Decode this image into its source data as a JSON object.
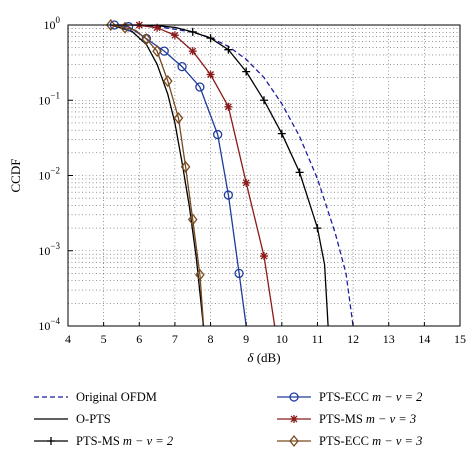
{
  "chart_data": {
    "type": "line",
    "xlabel": "δ (dB)",
    "ylabel": "CCDF",
    "xlim": [
      4,
      15
    ],
    "ylim": [
      0.0001,
      1
    ],
    "yscale": "log",
    "grid": true,
    "x_ticks": [
      "4",
      "5",
      "6",
      "7",
      "8",
      "9",
      "10",
      "11",
      "12",
      "13",
      "14",
      "15"
    ],
    "y_ticks": [
      {
        "base": "10",
        "exp": "0"
      },
      {
        "base": "10",
        "exp": "−1"
      },
      {
        "base": "10",
        "exp": "−2"
      },
      {
        "base": "10",
        "exp": "−3"
      },
      {
        "base": "10",
        "exp": "−4"
      }
    ],
    "legend_position": "bottom",
    "series": [
      {
        "name": "Original OFDM",
        "color": "#1f1f9e",
        "dash": true,
        "marker": "none",
        "points": [
          [
            5.8,
            1.0
          ],
          [
            6.5,
            0.95
          ],
          [
            7.0,
            0.88
          ],
          [
            7.5,
            0.8
          ],
          [
            8.0,
            0.68
          ],
          [
            8.5,
            0.52
          ],
          [
            9.0,
            0.35
          ],
          [
            9.5,
            0.2
          ],
          [
            10.0,
            0.09
          ],
          [
            10.5,
            0.033
          ],
          [
            11.0,
            0.009
          ],
          [
            11.5,
            0.0017
          ],
          [
            11.8,
            0.0005
          ],
          [
            12.0,
            0.0001
          ]
        ]
      },
      {
        "name": "O-PTS",
        "color": "#000000",
        "dash": false,
        "marker": "none",
        "points": [
          [
            5.2,
            1.0
          ],
          [
            5.8,
            0.82
          ],
          [
            6.2,
            0.55
          ],
          [
            6.5,
            0.3
          ],
          [
            6.8,
            0.12
          ],
          [
            7.0,
            0.05
          ],
          [
            7.2,
            0.015
          ],
          [
            7.4,
            0.004
          ],
          [
            7.6,
            0.0008
          ],
          [
            7.8,
            0.0001
          ]
        ]
      },
      {
        "name": "PTS-MS m − v = 2",
        "color": "#000000",
        "dash": false,
        "marker": "plus",
        "points": [
          [
            5.2,
            1.0
          ],
          [
            6.0,
            1.0
          ],
          [
            6.5,
            0.98
          ],
          [
            7.0,
            0.93
          ],
          [
            7.5,
            0.81
          ],
          [
            8.0,
            0.67
          ],
          [
            8.5,
            0.47
          ],
          [
            9.0,
            0.24
          ],
          [
            9.5,
            0.1
          ],
          [
            10.0,
            0.036
          ],
          [
            10.5,
            0.011
          ],
          [
            11.0,
            0.002
          ],
          [
            11.2,
            0.00065
          ],
          [
            11.3,
            0.0001
          ]
        ]
      },
      {
        "name": "PTS-ECC m − v = 2",
        "color": "#1f3c9e",
        "dash": false,
        "marker": "circle",
        "points": [
          [
            5.3,
            1.0
          ],
          [
            5.7,
            0.95
          ],
          [
            6.2,
            0.66
          ],
          [
            6.7,
            0.45
          ],
          [
            7.2,
            0.28
          ],
          [
            7.7,
            0.15
          ],
          [
            8.2,
            0.035
          ],
          [
            8.5,
            0.0055
          ],
          [
            8.8,
            0.0005
          ],
          [
            9.0,
            0.0001
          ]
        ]
      },
      {
        "name": "PTS-MS m − v = 3",
        "color": "#8b1a1a",
        "dash": false,
        "marker": "star",
        "points": [
          [
            5.3,
            1.0
          ],
          [
            5.9,
            1.0
          ],
          [
            6.5,
            0.92
          ],
          [
            7.0,
            0.73
          ],
          [
            7.5,
            0.45
          ],
          [
            8.0,
            0.22
          ],
          [
            8.5,
            0.082
          ],
          [
            9.0,
            0.008
          ],
          [
            9.5,
            0.00085
          ],
          [
            9.8,
            0.0001
          ]
        ]
      },
      {
        "name": "PTS-ECC m − v = 3",
        "color": "#7a4a1e",
        "dash": false,
        "marker": "diamond",
        "points": [
          [
            5.2,
            1.0
          ],
          [
            5.6,
            0.92
          ],
          [
            5.9,
            0.85
          ],
          [
            6.2,
            0.65
          ],
          [
            6.5,
            0.45
          ],
          [
            6.8,
            0.18
          ],
          [
            7.1,
            0.058
          ],
          [
            7.3,
            0.013
          ],
          [
            7.5,
            0.0026
          ],
          [
            7.7,
            0.00048
          ],
          [
            7.8,
            0.00011
          ]
        ]
      }
    ],
    "markers": {
      "PTS-MS m − v = 2": [
        [
          7.5,
          0.81
        ],
        [
          8.0,
          0.67
        ],
        [
          8.5,
          0.47
        ],
        [
          9.0,
          0.24
        ],
        [
          9.5,
          0.1
        ],
        [
          10.0,
          0.036
        ],
        [
          10.5,
          0.011
        ],
        [
          11.0,
          0.002
        ]
      ],
      "PTS-ECC m − v = 2": [
        [
          5.3,
          1.0
        ],
        [
          5.7,
          0.95
        ],
        [
          6.2,
          0.66
        ],
        [
          6.7,
          0.45
        ],
        [
          7.2,
          0.28
        ],
        [
          7.7,
          0.15
        ],
        [
          8.2,
          0.035
        ],
        [
          8.5,
          0.0055
        ],
        [
          8.8,
          0.0005
        ]
      ],
      "PTS-MS m − v = 3": [
        [
          6.0,
          1.0
        ],
        [
          6.5,
          0.92
        ],
        [
          7.0,
          0.73
        ],
        [
          7.5,
          0.45
        ],
        [
          8.0,
          0.22
        ],
        [
          8.5,
          0.082
        ],
        [
          9.0,
          0.008
        ],
        [
          9.5,
          0.00085
        ]
      ],
      "PTS-ECC m − v = 3": [
        [
          5.2,
          1.0
        ],
        [
          5.6,
          0.92
        ],
        [
          6.2,
          0.65
        ],
        [
          6.5,
          0.45
        ],
        [
          6.8,
          0.18
        ],
        [
          7.1,
          0.058
        ],
        [
          7.3,
          0.013
        ],
        [
          7.5,
          0.0026
        ],
        [
          7.7,
          0.00048
        ]
      ]
    }
  },
  "legend": {
    "left": [
      {
        "series": "Original OFDM",
        "label": "Original OFDM"
      },
      {
        "series": "O-PTS",
        "label": "O-PTS"
      },
      {
        "series": "PTS-MS m − v = 2",
        "label_prefix": "PTS-MS ",
        "label_math": "m − ν = 2"
      }
    ],
    "right": [
      {
        "series": "PTS-ECC m − v = 2",
        "label_prefix": "PTS-ECC ",
        "label_math": "m − ν = 2"
      },
      {
        "series": "PTS-MS m − v = 3",
        "label_prefix": "PTS-MS ",
        "label_math": "m − ν = 3"
      },
      {
        "series": "PTS-ECC m − v = 3",
        "label_prefix": "PTS-ECC ",
        "label_math": "m − ν = 3"
      }
    ]
  }
}
